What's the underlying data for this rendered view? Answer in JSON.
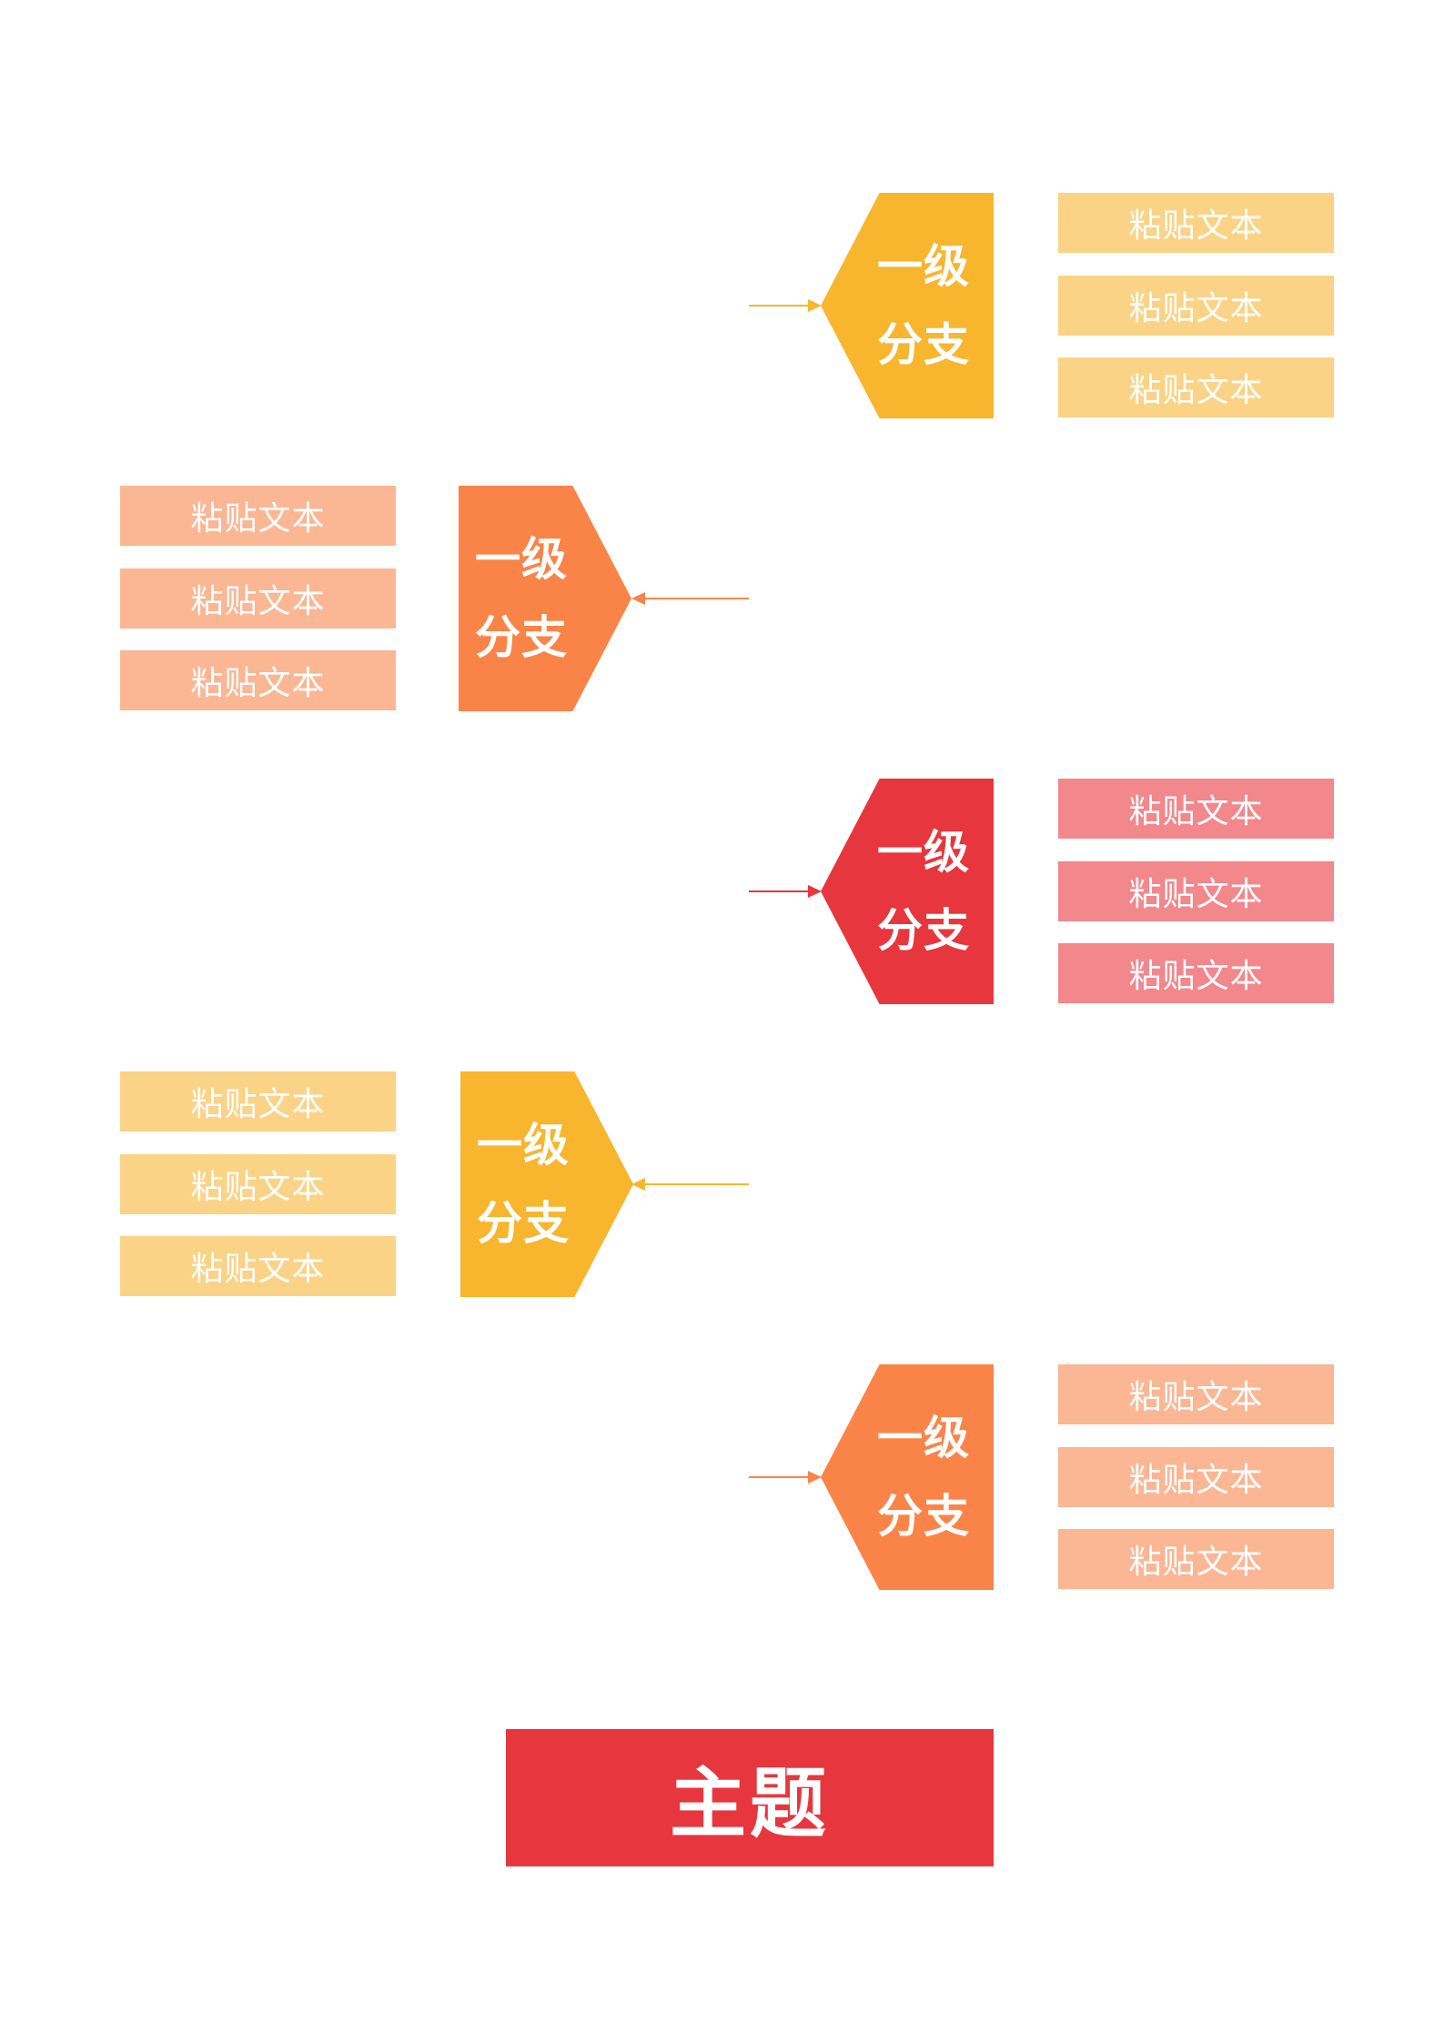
{
  "colors": {
    "red": "#e8363e",
    "orange": "#fa8447",
    "yellow": "#f8b52e",
    "red_light": "#f2878c",
    "orange_light": "#fbb694",
    "yellow_light": "#fbd386"
  },
  "main_topic": {
    "label": "主题"
  },
  "branches": [
    {
      "line1": "一级",
      "line2": "分支",
      "leaves": [
        "粘贴文本",
        "粘贴文本",
        "粘贴文本"
      ]
    },
    {
      "line1": "一级",
      "line2": "分支",
      "leaves": [
        "粘贴文本",
        "粘贴文本",
        "粘贴文本"
      ]
    },
    {
      "line1": "一级",
      "line2": "分支",
      "leaves": [
        "粘贴文本",
        "粘贴文本",
        "粘贴文本"
      ]
    },
    {
      "line1": "一级",
      "line2": "分支",
      "leaves": [
        "粘贴文本",
        "粘贴文本",
        "粘贴文本"
      ]
    },
    {
      "line1": "一级",
      "line2": "分支",
      "leaves": [
        "粘贴文本",
        "粘贴文本",
        "粘贴文本"
      ]
    }
  ]
}
